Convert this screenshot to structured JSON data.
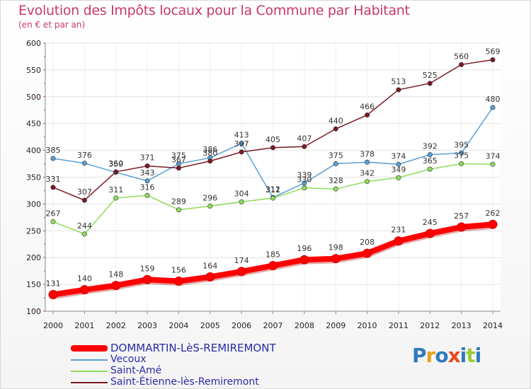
{
  "title": "Evolution des Impôts locaux pour la Commune par Habitant",
  "subtitle": "(en € et par an)",
  "logo_text": "Proxiti",
  "logo_letter_colors": [
    "#2e7ac0",
    "#e8a020",
    "#2e7ac0",
    "#e84a20",
    "#2e7ac0",
    "#9acd32",
    "#2e7ac0"
  ],
  "chart_data": {
    "type": "line",
    "title": "Evolution des Impôts locaux pour la Commune par Habitant",
    "subtitle": "(en € et par an)",
    "xlabel": "",
    "ylabel": "",
    "x": [
      "2000",
      "2001",
      "2002",
      "2003",
      "2004",
      "2005",
      "2006",
      "2007",
      "2008",
      "2009",
      "2010",
      "2011",
      "2012",
      "2013",
      "2014"
    ],
    "ylim": [
      100,
      600
    ],
    "yticks": [
      100,
      150,
      200,
      250,
      300,
      350,
      400,
      450,
      500,
      550,
      600
    ],
    "grid": true,
    "legend_position": "bottom-left",
    "series": [
      {
        "name": "DOMMARTIN-LèS-REMIREMONT",
        "color": "#ff0000",
        "emphasis": true,
        "values": [
          131,
          140,
          148,
          159,
          156,
          164,
          174,
          185,
          196,
          198,
          208,
          231,
          245,
          257,
          262
        ],
        "labels": [
          "131",
          "140",
          "148",
          "159",
          "156",
          "164",
          "174",
          "185",
          "196",
          "198",
          "208",
          "231",
          "245",
          "257",
          "262"
        ]
      },
      {
        "name": "Vecoux",
        "color": "#5a9fd4",
        "values": [
          385,
          376,
          359,
          343,
          375,
          386,
          413,
          312,
          339,
          375,
          378,
          374,
          392,
          395,
          480
        ],
        "labels": [
          "385",
          "376",
          "359",
          "343",
          "375",
          "386",
          "413",
          "312",
          "339",
          "375",
          "378",
          "374",
          "392",
          "395",
          "480"
        ]
      },
      {
        "name": "Saint-Amé",
        "color": "#8fdb5a",
        "values": [
          267,
          244,
          311,
          316,
          289,
          296,
          304,
          311,
          330,
          328,
          342,
          349,
          365,
          375,
          374
        ],
        "labels": [
          "267",
          "244",
          "311",
          "316",
          "289",
          "296",
          "304",
          "311",
          "330",
          "328",
          "342",
          "349",
          "365",
          "375",
          "374"
        ]
      },
      {
        "name": "Saint-Étienne-lès-Remiremont",
        "color": "#7a1a22",
        "values": [
          331,
          307,
          360,
          371,
          367,
          380,
          397,
          405,
          407,
          440,
          466,
          513,
          525,
          560,
          569
        ],
        "labels": [
          "331",
          "307",
          "360",
          "371",
          "367",
          "380",
          "397",
          "405",
          "407",
          "440",
          "466",
          "513",
          "525",
          "560",
          "569"
        ]
      }
    ]
  }
}
